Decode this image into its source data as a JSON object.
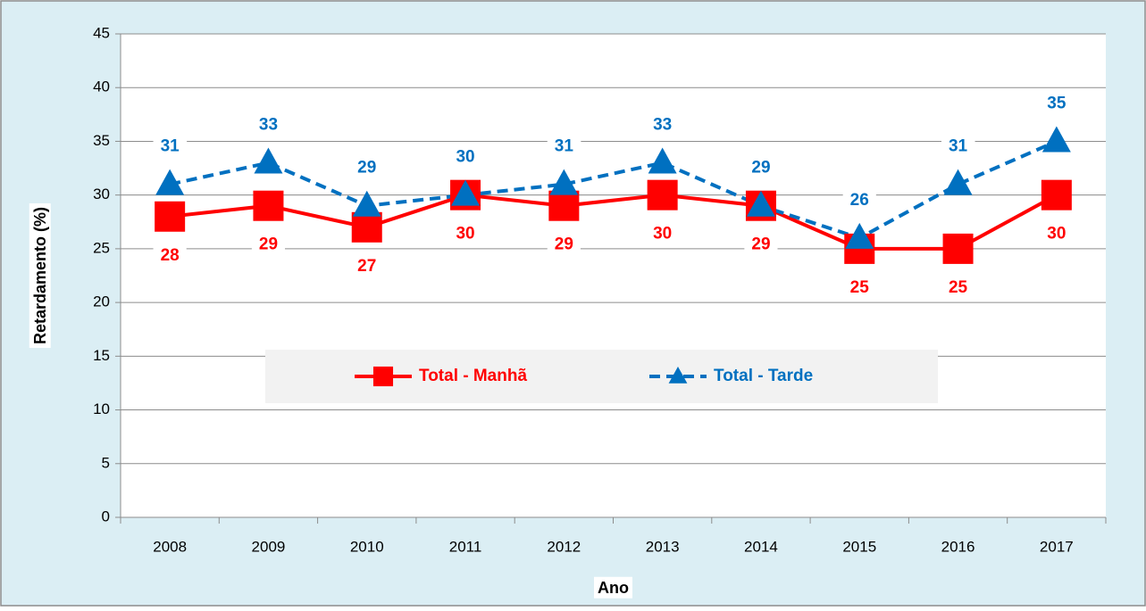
{
  "chart_data": {
    "type": "line",
    "x_label": "Ano",
    "y_label": "Retardamento (%)",
    "categories": [
      "2008",
      "2009",
      "2010",
      "2011",
      "2012",
      "2013",
      "2014",
      "2015",
      "2016",
      "2017"
    ],
    "series": [
      {
        "name": "Total - Manhã",
        "color": "#ff0000",
        "marker": "square",
        "dash": "solid",
        "label_position": "below",
        "values": [
          28,
          29,
          27,
          30,
          29,
          30,
          29,
          25,
          25,
          30
        ]
      },
      {
        "name": "Total - Tarde",
        "color": "#0070c0",
        "marker": "triangle",
        "dash": "dashed",
        "label_position": "above",
        "values": [
          31,
          33,
          29,
          30,
          31,
          33,
          29,
          26,
          31,
          35
        ]
      }
    ],
    "ylim": [
      0,
      45
    ],
    "yticks": [
      0,
      5,
      10,
      15,
      20,
      25,
      30,
      35,
      40,
      45
    ],
    "grid": true,
    "legend": "center"
  }
}
